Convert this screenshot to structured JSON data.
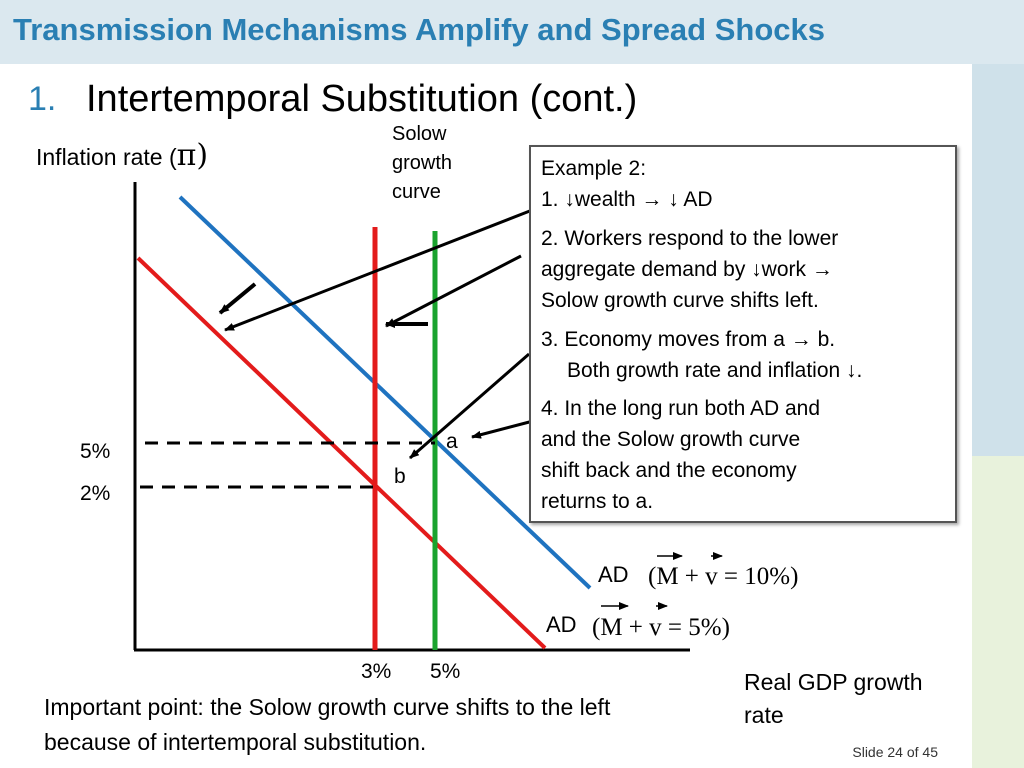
{
  "header": {
    "title": "Transmission Mechanisms Amplify and Spread Shocks"
  },
  "subtitle": {
    "number": "1.",
    "text": "Intertemporal Substitution (cont.)"
  },
  "chart": {
    "y_axis_label": "Inflation rate (",
    "y_axis_symbol": "π)",
    "x_axis_label": "Real GDP growth rate",
    "solow_label": "Solow growth curve",
    "y_ticks": [
      "5%",
      "2%"
    ],
    "x_ticks": [
      "3%",
      "5%"
    ],
    "point_a": "a",
    "point_b": "b",
    "ad_high": {
      "label": "AD",
      "formula": "(M + v = 10%)"
    },
    "ad_low": {
      "label": "AD",
      "formula": "(M + v = 5%)"
    }
  },
  "example_box": {
    "heading": "Example 2:",
    "line1": "1. ↓wealth → ↓ AD",
    "line2a": "2. Workers respond to the lower",
    "line2b": "aggregate demand by ↓work →",
    "line2c": "Solow growth curve shifts left.",
    "line3a": "3. Economy moves from a → b.",
    "line3b": "Both growth rate and inflation ↓.",
    "line4a": "4. In the long run both AD and",
    "line4b": "and the Solow growth curve",
    "line4c": "shift back and the economy",
    "line4d": "returns to a."
  },
  "bottom_note": "Important point: the Solow growth curve shifts to the left because of intertemporal substitution.",
  "slide_number": "Slide 24 of 45",
  "colors": {
    "header_bg": "#dbe8ef",
    "title": "#2a7fb3",
    "ad_high": "#1f73c0",
    "ad_low": "#e31b1b",
    "solow_old": "#1aa32e",
    "solow_new": "#e31b1b"
  }
}
